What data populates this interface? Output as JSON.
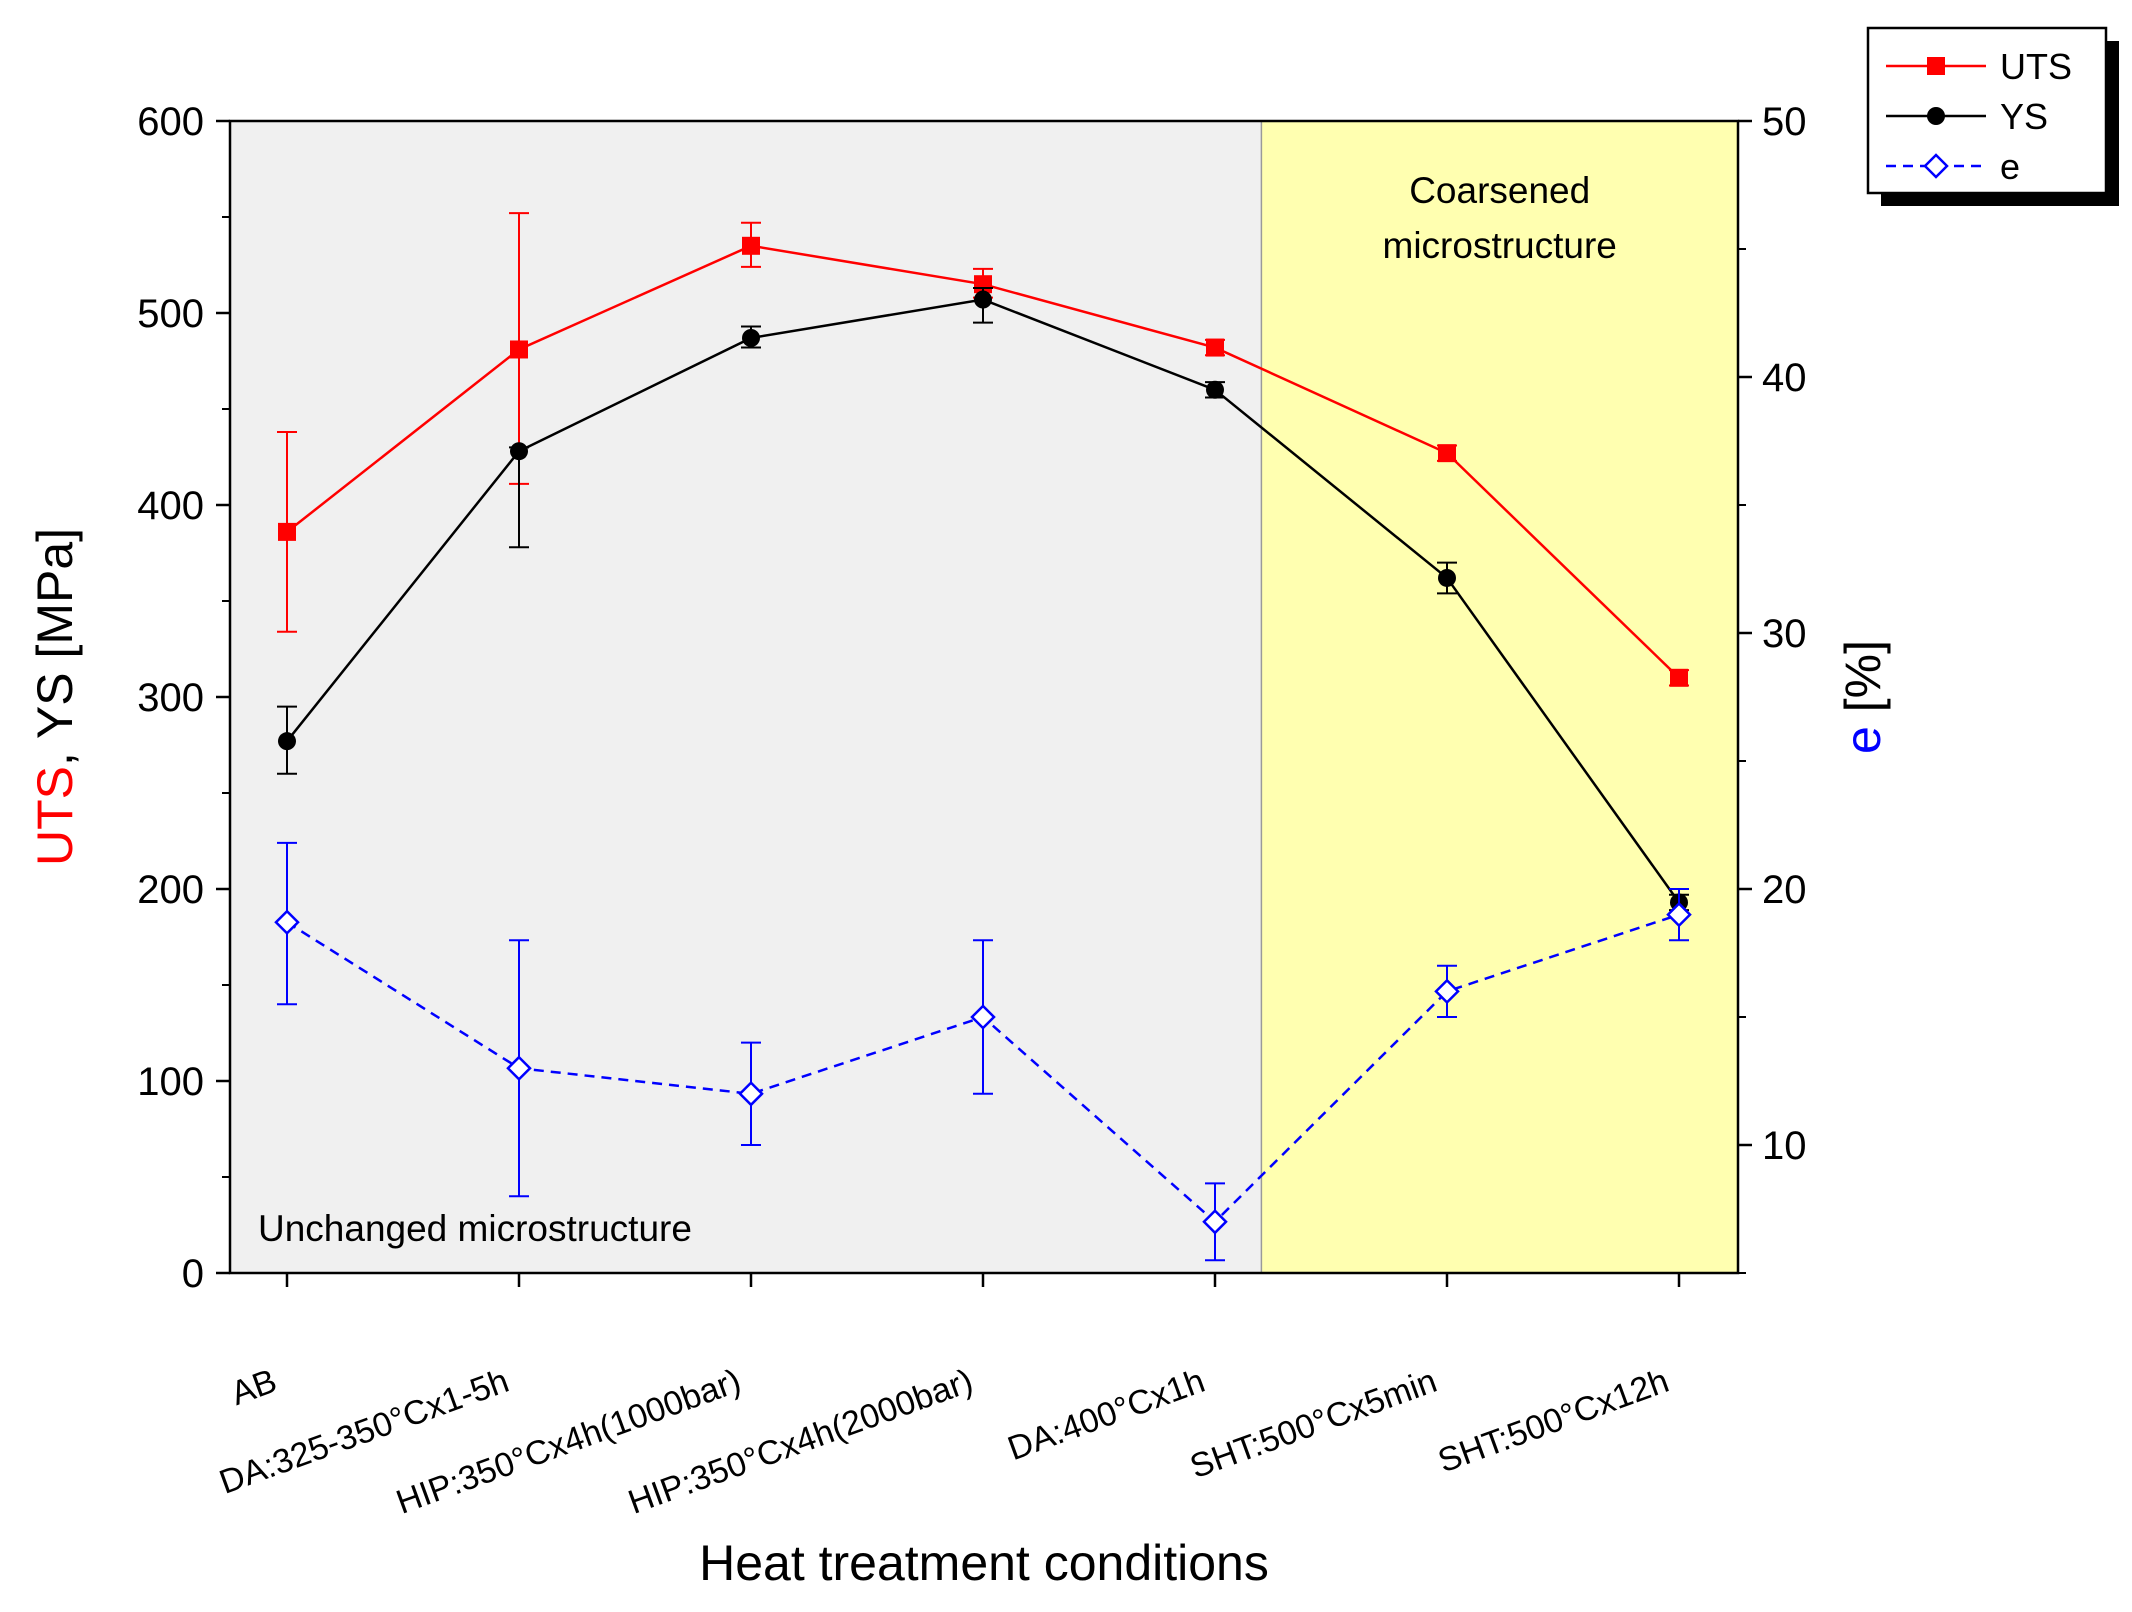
{
  "chart_data": {
    "type": "line",
    "x_title": "Heat treatment conditions",
    "categories": [
      "AB",
      "DA:325-350°Cx1-5h",
      "HIP:350°Cx4h(1000bar)",
      "HIP:350°Cx4h(2000bar)",
      "DA:400°Cx1h",
      "SHT:500°Cx5min",
      "SHT:500°Cx12h"
    ],
    "left_axis": {
      "label_parts": [
        "UTS",
        ", ",
        "YS [MPa]"
      ],
      "label_colors": [
        "#ff0000",
        "#000000",
        "#000000"
      ],
      "ylim": [
        0,
        600
      ],
      "ticks": [
        0,
        100,
        200,
        300,
        400,
        500,
        600
      ]
    },
    "right_axis": {
      "label_parts": [
        "e",
        " [%]"
      ],
      "label_colors": [
        "#0000ff",
        "#000000"
      ],
      "ylim": [
        5,
        50
      ],
      "ticks": [
        10,
        20,
        30,
        40,
        50
      ]
    },
    "regions": [
      {
        "label": "Unchanged microstructure",
        "from": -0.5,
        "to": 4.2,
        "color": "#f0f0f0"
      },
      {
        "label_lines": [
          "Coarsened",
          "microstructure"
        ],
        "from": 4.2,
        "to": 6.3,
        "color": "#ffffb0"
      }
    ],
    "series": [
      {
        "name": "UTS",
        "axis": "left",
        "color": "#ff0000",
        "marker": "square",
        "dash": false,
        "values": [
          386,
          481,
          535,
          515,
          482,
          427,
          310
        ],
        "err_lower": [
          334,
          411,
          524,
          508,
          478,
          423,
          306
        ],
        "err_upper": [
          438,
          552,
          547,
          523,
          486,
          431,
          314
        ]
      },
      {
        "name": "YS",
        "axis": "left",
        "color": "#000000",
        "marker": "circle",
        "dash": false,
        "values": [
          277,
          428,
          487,
          507,
          460,
          362,
          193
        ],
        "err_lower": [
          260,
          378,
          482,
          495,
          456,
          354,
          189
        ],
        "err_upper": [
          295,
          430,
          493,
          513,
          464,
          370,
          197
        ]
      },
      {
        "name": "e",
        "axis": "right",
        "color": "#0000ff",
        "marker": "diamond-open",
        "dash": true,
        "values": [
          18.7,
          13.0,
          12.0,
          15.0,
          7.0,
          16.0,
          19.0
        ],
        "err_lower": [
          15.5,
          8.0,
          10.0,
          12.0,
          5.5,
          15.0,
          18.0
        ],
        "err_upper": [
          21.8,
          18.0,
          14.0,
          18.0,
          8.5,
          17.0,
          20.0
        ]
      }
    ],
    "legend": {
      "position": "top-right outside",
      "entries": [
        "UTS",
        "YS",
        "e"
      ]
    }
  }
}
